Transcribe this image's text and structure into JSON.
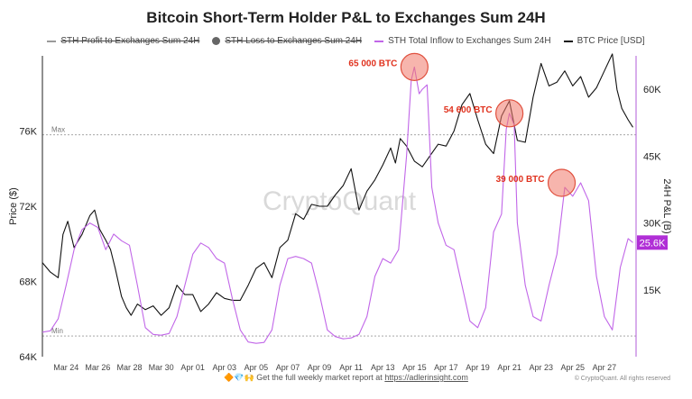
{
  "title": "Bitcoin Short-Term Holder P&L to Exchanges Sum 24H",
  "legend": [
    {
      "label": "STH Profit to Exchanges Sum 24H",
      "color": "#9a9a9a",
      "marker": "line",
      "struck": true
    },
    {
      "label": "STH Loss to Exchanges Sum 24H",
      "color": "#666666",
      "marker": "dot",
      "struck": true
    },
    {
      "label": "STH Total Inflow to  Exchanges Sum 24H",
      "color": "#c166e8",
      "marker": "line",
      "struck": false
    },
    {
      "label": "BTC Price [USD]",
      "color": "#111111",
      "marker": "line",
      "struck": false
    }
  ],
  "watermark": "CryptoQuant",
  "footer": {
    "emoji": "🔶💎🙌",
    "text": "Get the full weekly market report at",
    "link": "https://adlerinsight.com"
  },
  "copyright": "© CryptoQuant. All rights reserved",
  "chart_data": {
    "type": "line",
    "ylabel_left": "Price ($)",
    "ylabel_right": "24H P&L (B)",
    "left_ticks": [
      "64K",
      "68K",
      "72K",
      "76K"
    ],
    "right_ticks": [
      "15K",
      "30K",
      "45K",
      "60K"
    ],
    "ylim_left": [
      64000,
      80000
    ],
    "ylim_right": [
      0,
      67500
    ],
    "xlim": [
      0,
      37.5
    ],
    "x_ticks": [
      {
        "label": "Mar 24",
        "x": 1.5
      },
      {
        "label": "Mar 26",
        "x": 3.5
      },
      {
        "label": "Mar 28",
        "x": 5.5
      },
      {
        "label": "Mar 30",
        "x": 7.5
      },
      {
        "label": "Apr 01",
        "x": 9.5
      },
      {
        "label": "Apr 03",
        "x": 11.5
      },
      {
        "label": "Apr 05",
        "x": 13.5
      },
      {
        "label": "Apr 07",
        "x": 15.5
      },
      {
        "label": "Apr 09",
        "x": 17.5
      },
      {
        "label": "Apr 11",
        "x": 19.5
      },
      {
        "label": "Apr 13",
        "x": 21.5
      },
      {
        "label": "Apr 15",
        "x": 23.5
      },
      {
        "label": "Apr 17",
        "x": 25.5
      },
      {
        "label": "Apr 19",
        "x": 27.5
      },
      {
        "label": "Apr 21",
        "x": 29.5
      },
      {
        "label": "Apr 23",
        "x": 31.5
      },
      {
        "label": "Apr 25",
        "x": 33.5
      },
      {
        "label": "Apr 27",
        "x": 35.5
      }
    ],
    "max_line": {
      "label": "Max",
      "value": 75800
    },
    "min_line": {
      "label": "Min",
      "value": 65100
    },
    "current_badge": {
      "label": "25.6K",
      "value": 25600
    },
    "annotations": [
      {
        "label": "65 000 BTC",
        "x": 23.5,
        "y": 65000
      },
      {
        "label": "54 600 BTC",
        "x": 29.5,
        "y": 54600
      },
      {
        "label": "39 000 BTC",
        "x": 32.8,
        "y": 39000
      }
    ],
    "series": [
      {
        "name": "BTC Price [USD]",
        "axis": "left",
        "color": "#111111",
        "points": [
          [
            0,
            69000
          ],
          [
            0.5,
            68500
          ],
          [
            1,
            68200
          ],
          [
            1.3,
            70500
          ],
          [
            1.6,
            71200
          ],
          [
            2,
            69800
          ],
          [
            2.5,
            70500
          ],
          [
            3,
            71500
          ],
          [
            3.3,
            71800
          ],
          [
            3.6,
            70800
          ],
          [
            4,
            70200
          ],
          [
            4.3,
            69700
          ],
          [
            4.6,
            68700
          ],
          [
            5,
            67200
          ],
          [
            5.3,
            66600
          ],
          [
            5.6,
            66200
          ],
          [
            6,
            66800
          ],
          [
            6.5,
            66500
          ],
          [
            7,
            66700
          ],
          [
            7.5,
            66200
          ],
          [
            8,
            66600
          ],
          [
            8.5,
            67800
          ],
          [
            9,
            67300
          ],
          [
            9.5,
            67300
          ],
          [
            10,
            66400
          ],
          [
            10.5,
            66800
          ],
          [
            11,
            67400
          ],
          [
            11.5,
            67100
          ],
          [
            12,
            67000
          ],
          [
            12.5,
            67000
          ],
          [
            13,
            67800
          ],
          [
            13.5,
            68700
          ],
          [
            14,
            69000
          ],
          [
            14.5,
            68200
          ],
          [
            15,
            69800
          ],
          [
            15.5,
            70200
          ],
          [
            16,
            71600
          ],
          [
            16.5,
            71300
          ],
          [
            17,
            72100
          ],
          [
            17.5,
            72000
          ],
          [
            18,
            72000
          ],
          [
            18.5,
            72600
          ],
          [
            19,
            73100
          ],
          [
            19.5,
            74000
          ],
          [
            20,
            71800
          ],
          [
            20.5,
            72800
          ],
          [
            21,
            73400
          ],
          [
            21.5,
            74200
          ],
          [
            22,
            75100
          ],
          [
            22.3,
            74300
          ],
          [
            22.6,
            75600
          ],
          [
            23,
            75200
          ],
          [
            23.5,
            74400
          ],
          [
            24,
            74100
          ],
          [
            24.5,
            74700
          ],
          [
            25,
            75300
          ],
          [
            25.5,
            75200
          ],
          [
            26,
            76000
          ],
          [
            26.5,
            77400
          ],
          [
            27,
            78000
          ],
          [
            27.5,
            76600
          ],
          [
            28,
            75300
          ],
          [
            28.5,
            74800
          ],
          [
            29,
            76800
          ],
          [
            29.5,
            77600
          ],
          [
            30,
            75500
          ],
          [
            30.5,
            75400
          ],
          [
            31,
            77800
          ],
          [
            31.5,
            79600
          ],
          [
            32,
            78400
          ],
          [
            32.5,
            78600
          ],
          [
            33,
            79200
          ],
          [
            33.5,
            78400
          ],
          [
            34,
            78900
          ],
          [
            34.5,
            77800
          ],
          [
            35,
            78300
          ],
          [
            35.5,
            79200
          ],
          [
            36,
            80100
          ],
          [
            36.3,
            78200
          ],
          [
            36.6,
            77200
          ],
          [
            37,
            76600
          ],
          [
            37.3,
            76200
          ]
        ]
      },
      {
        "name": "STH Total Inflow to  Exchanges Sum 24H",
        "axis": "right",
        "color": "#c166e8",
        "points": [
          [
            0,
            5500
          ],
          [
            0.5,
            5800
          ],
          [
            1,
            8500
          ],
          [
            1.5,
            16000
          ],
          [
            2,
            24000
          ],
          [
            2.5,
            28500
          ],
          [
            3,
            30000
          ],
          [
            3.5,
            29000
          ],
          [
            4,
            24000
          ],
          [
            4.5,
            27500
          ],
          [
            5,
            26000
          ],
          [
            5.5,
            25000
          ],
          [
            6,
            16000
          ],
          [
            6.5,
            6500
          ],
          [
            7,
            5000
          ],
          [
            7.5,
            4800
          ],
          [
            8,
            5200
          ],
          [
            8.5,
            9000
          ],
          [
            9,
            16000
          ],
          [
            9.5,
            23000
          ],
          [
            10,
            25500
          ],
          [
            10.5,
            24500
          ],
          [
            11,
            22000
          ],
          [
            11.5,
            21000
          ],
          [
            12,
            13000
          ],
          [
            12.5,
            6000
          ],
          [
            13,
            3300
          ],
          [
            13.5,
            3000
          ],
          [
            14,
            3200
          ],
          [
            14.5,
            6000
          ],
          [
            15,
            16000
          ],
          [
            15.5,
            22000
          ],
          [
            16,
            22500
          ],
          [
            16.5,
            22000
          ],
          [
            17,
            21000
          ],
          [
            17.5,
            14000
          ],
          [
            18,
            6000
          ],
          [
            18.5,
            4500
          ],
          [
            19,
            4000
          ],
          [
            19.5,
            4200
          ],
          [
            20,
            5000
          ],
          [
            20.5,
            9000
          ],
          [
            21,
            18000
          ],
          [
            21.5,
            22000
          ],
          [
            22,
            21000
          ],
          [
            22.5,
            24000
          ],
          [
            23,
            45000
          ],
          [
            23.3,
            62000
          ],
          [
            23.5,
            65000
          ],
          [
            23.8,
            59000
          ],
          [
            24,
            60000
          ],
          [
            24.3,
            61000
          ],
          [
            24.6,
            38000
          ],
          [
            25,
            30000
          ],
          [
            25.5,
            25000
          ],
          [
            26,
            24000
          ],
          [
            26.5,
            16000
          ],
          [
            27,
            8000
          ],
          [
            27.5,
            6500
          ],
          [
            28,
            11000
          ],
          [
            28.5,
            28000
          ],
          [
            29,
            32000
          ],
          [
            29.3,
            51000
          ],
          [
            29.5,
            54600
          ],
          [
            29.8,
            52000
          ],
          [
            30,
            30000
          ],
          [
            30.5,
            16000
          ],
          [
            31,
            9000
          ],
          [
            31.5,
            8000
          ],
          [
            32,
            16000
          ],
          [
            32.5,
            23000
          ],
          [
            33,
            38000
          ],
          [
            33.5,
            36000
          ],
          [
            34,
            39000
          ],
          [
            34.5,
            35000
          ],
          [
            35,
            18000
          ],
          [
            35.5,
            9000
          ],
          [
            36,
            6000
          ],
          [
            36.5,
            20000
          ],
          [
            37,
            26500
          ],
          [
            37.3,
            25600
          ]
        ]
      }
    ]
  }
}
